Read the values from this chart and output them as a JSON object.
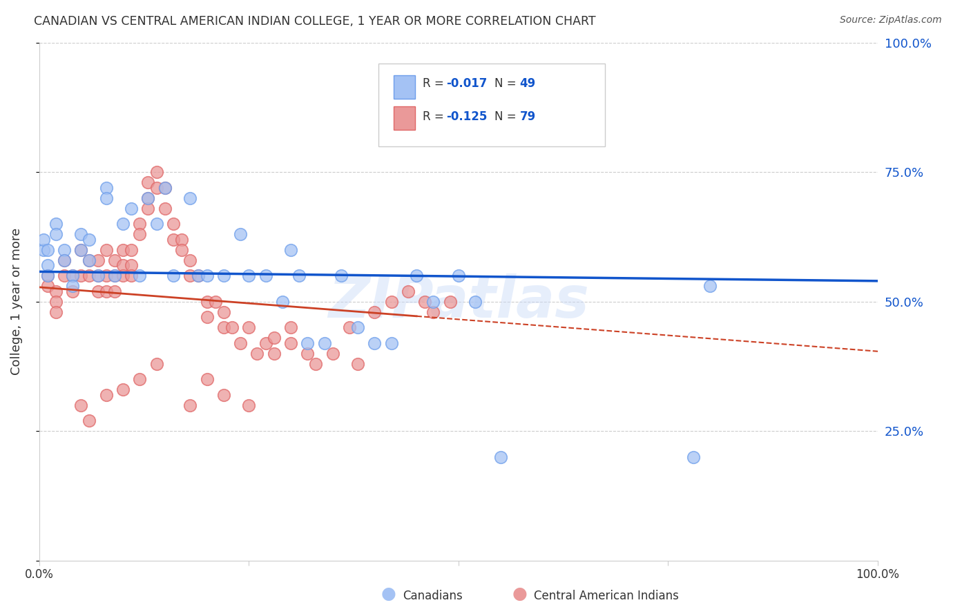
{
  "title": "CANADIAN VS CENTRAL AMERICAN INDIAN COLLEGE, 1 YEAR OR MORE CORRELATION CHART",
  "source": "Source: ZipAtlas.com",
  "ylabel": "College, 1 year or more",
  "xlim": [
    0.0,
    1.0
  ],
  "ylim": [
    0.0,
    1.0
  ],
  "blue_R": -0.017,
  "blue_N": 49,
  "pink_R": -0.125,
  "pink_N": 79,
  "legend_label_blue": "Canadians",
  "legend_label_pink": "Central American Indians",
  "blue_fill_color": "#a4c2f4",
  "pink_fill_color": "#ea9999",
  "blue_edge_color": "#6d9eeb",
  "pink_edge_color": "#e06666",
  "blue_line_color": "#1155cc",
  "pink_line_color": "#cc4125",
  "label_color": "#1155cc",
  "watermark": "ZIPatlas",
  "grid_color": "#cccccc",
  "blue_scatter_x": [
    0.005,
    0.005,
    0.01,
    0.01,
    0.01,
    0.02,
    0.02,
    0.03,
    0.03,
    0.04,
    0.04,
    0.05,
    0.05,
    0.06,
    0.06,
    0.07,
    0.08,
    0.08,
    0.09,
    0.1,
    0.11,
    0.12,
    0.13,
    0.14,
    0.15,
    0.16,
    0.18,
    0.19,
    0.2,
    0.22,
    0.24,
    0.25,
    0.27,
    0.29,
    0.3,
    0.31,
    0.32,
    0.34,
    0.36,
    0.38,
    0.4,
    0.42,
    0.45,
    0.47,
    0.5,
    0.52,
    0.55,
    0.78,
    0.8
  ],
  "blue_scatter_y": [
    0.6,
    0.62,
    0.6,
    0.57,
    0.55,
    0.65,
    0.63,
    0.6,
    0.58,
    0.55,
    0.53,
    0.63,
    0.6,
    0.62,
    0.58,
    0.55,
    0.72,
    0.7,
    0.55,
    0.65,
    0.68,
    0.55,
    0.7,
    0.65,
    0.72,
    0.55,
    0.7,
    0.55,
    0.55,
    0.55,
    0.63,
    0.55,
    0.55,
    0.5,
    0.6,
    0.55,
    0.42,
    0.42,
    0.55,
    0.45,
    0.42,
    0.42,
    0.55,
    0.5,
    0.55,
    0.5,
    0.2,
    0.2,
    0.53
  ],
  "pink_scatter_x": [
    0.01,
    0.01,
    0.02,
    0.02,
    0.02,
    0.03,
    0.03,
    0.04,
    0.04,
    0.05,
    0.05,
    0.06,
    0.06,
    0.07,
    0.07,
    0.07,
    0.08,
    0.08,
    0.08,
    0.09,
    0.09,
    0.09,
    0.1,
    0.1,
    0.1,
    0.11,
    0.11,
    0.11,
    0.12,
    0.12,
    0.13,
    0.13,
    0.13,
    0.14,
    0.14,
    0.15,
    0.15,
    0.16,
    0.16,
    0.17,
    0.17,
    0.18,
    0.18,
    0.19,
    0.2,
    0.2,
    0.21,
    0.22,
    0.22,
    0.23,
    0.24,
    0.25,
    0.26,
    0.27,
    0.28,
    0.28,
    0.3,
    0.3,
    0.32,
    0.33,
    0.35,
    0.37,
    0.38,
    0.4,
    0.42,
    0.44,
    0.46,
    0.47,
    0.49,
    0.05,
    0.06,
    0.08,
    0.1,
    0.12,
    0.14,
    0.18,
    0.2,
    0.22,
    0.25
  ],
  "pink_scatter_y": [
    0.55,
    0.53,
    0.52,
    0.5,
    0.48,
    0.58,
    0.55,
    0.55,
    0.52,
    0.6,
    0.55,
    0.58,
    0.55,
    0.58,
    0.55,
    0.52,
    0.6,
    0.55,
    0.52,
    0.58,
    0.55,
    0.52,
    0.6,
    0.57,
    0.55,
    0.6,
    0.57,
    0.55,
    0.65,
    0.63,
    0.73,
    0.7,
    0.68,
    0.75,
    0.72,
    0.72,
    0.68,
    0.65,
    0.62,
    0.62,
    0.6,
    0.58,
    0.55,
    0.55,
    0.5,
    0.47,
    0.5,
    0.48,
    0.45,
    0.45,
    0.42,
    0.45,
    0.4,
    0.42,
    0.43,
    0.4,
    0.45,
    0.42,
    0.4,
    0.38,
    0.4,
    0.45,
    0.38,
    0.48,
    0.5,
    0.52,
    0.5,
    0.48,
    0.5,
    0.3,
    0.27,
    0.32,
    0.33,
    0.35,
    0.38,
    0.3,
    0.35,
    0.32,
    0.3
  ],
  "blue_line_x0": 0.0,
  "blue_line_y0": 0.558,
  "blue_line_x1": 1.0,
  "blue_line_y1": 0.54,
  "pink_line_solid_x0": 0.0,
  "pink_line_solid_y0": 0.528,
  "pink_line_solid_x1": 0.45,
  "pink_line_solid_y1": 0.472,
  "pink_line_dash_x0": 0.45,
  "pink_line_dash_y0": 0.472,
  "pink_line_dash_x1": 1.0,
  "pink_line_dash_y1": 0.404
}
